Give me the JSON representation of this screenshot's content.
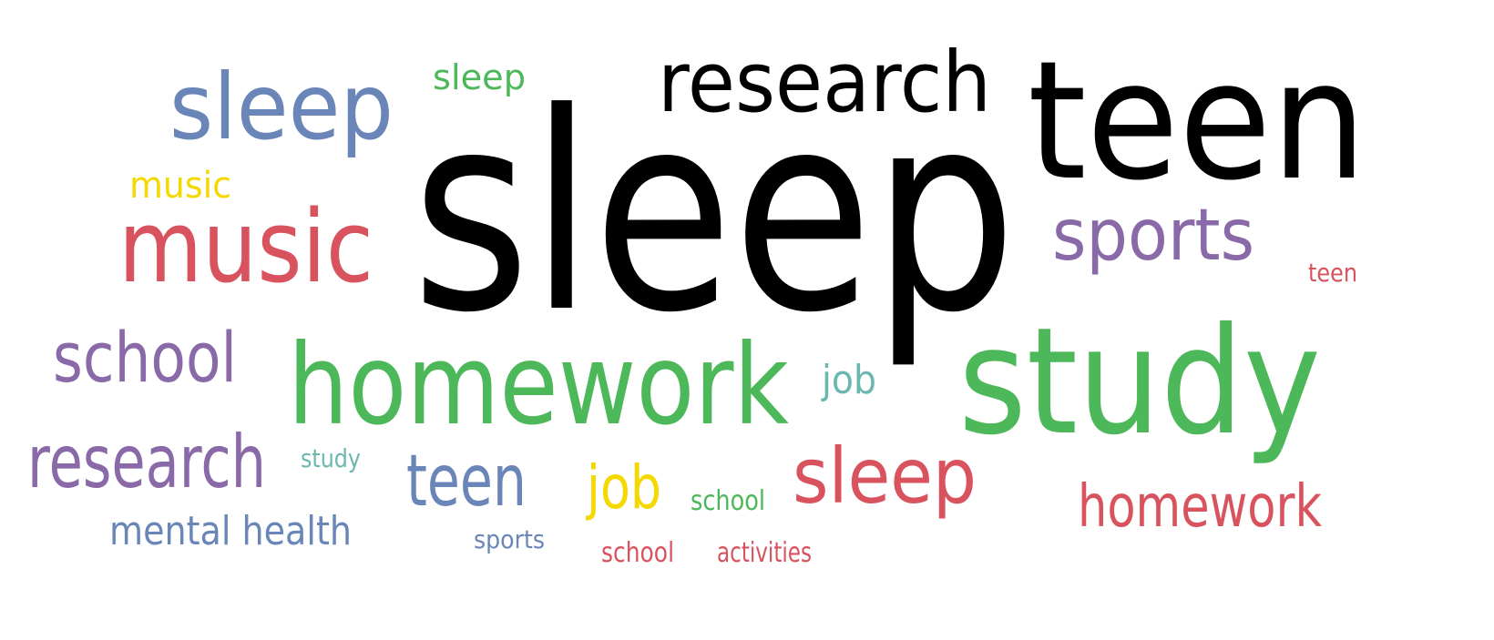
{
  "colors": {
    "black": "#000000",
    "blue": "#6a86b8",
    "green": "#4cb859",
    "red": "#d9535f",
    "purple": "#8a69a8",
    "yellow": "#f5d800",
    "teal": "#6cb8b0"
  },
  "words": [
    {
      "text": "sleep",
      "color": "red"
    },
    {
      "text": "sleep",
      "color": "blue"
    },
    {
      "text": "sleep",
      "color": "green"
    },
    {
      "text": "sleep",
      "color": "black"
    },
    {
      "text": "research",
      "color": "black"
    },
    {
      "text": "research",
      "color": "purple"
    },
    {
      "text": "teen",
      "color": "black"
    },
    {
      "text": "teen",
      "color": "red"
    },
    {
      "text": "teen",
      "color": "blue"
    },
    {
      "text": "music",
      "color": "yellow"
    },
    {
      "text": "music",
      "color": "red"
    },
    {
      "text": "sports",
      "color": "purple"
    },
    {
      "text": "sports",
      "color": "blue"
    },
    {
      "text": "school",
      "color": "purple"
    },
    {
      "text": "school",
      "color": "green"
    },
    {
      "text": "school",
      "color": "red"
    },
    {
      "text": "homework",
      "color": "green"
    },
    {
      "text": "homework",
      "color": "red"
    },
    {
      "text": "study",
      "color": "green"
    },
    {
      "text": "study",
      "color": "teal"
    },
    {
      "text": "job",
      "color": "teal"
    },
    {
      "text": "job",
      "color": "yellow"
    },
    {
      "text": "mental health",
      "color": "blue"
    },
    {
      "text": "activities",
      "color": "red"
    }
  ]
}
